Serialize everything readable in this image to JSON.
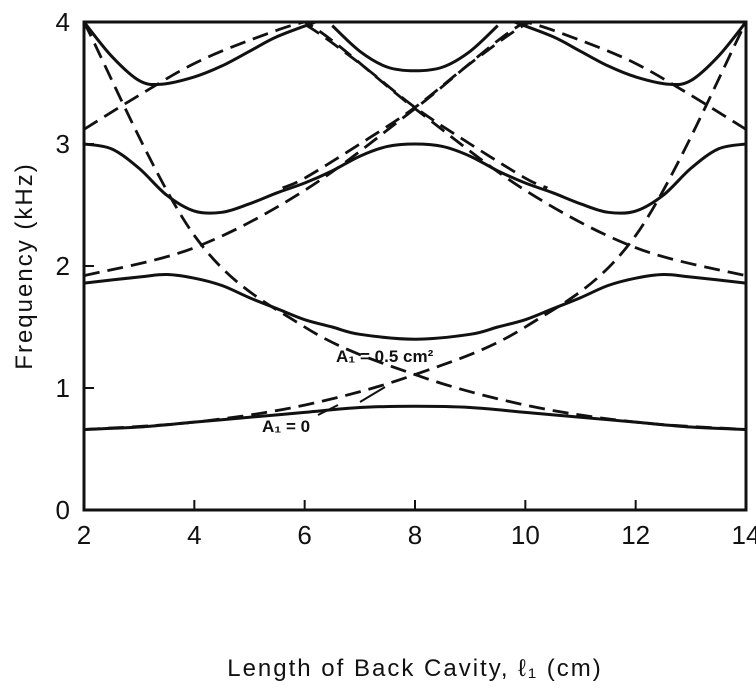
{
  "chart_data": {
    "type": "line",
    "xlabel": "Length of Back Cavity, ℓ₁ (cm)",
    "ylabel": "Frequency (kHz)",
    "xlim": [
      2,
      14
    ],
    "ylim": [
      0,
      4
    ],
    "xticks": [
      "2",
      "4",
      "6",
      "8",
      "10",
      "12",
      "14"
    ],
    "yticks": [
      "0",
      "1",
      "2",
      "3",
      "4"
    ],
    "grid": false,
    "annotations": [
      {
        "label": "A₁ = 0.5 cm²",
        "series_style": "solid"
      },
      {
        "label": "A₁ = 0",
        "series_style": "dashed"
      }
    ],
    "series": [
      {
        "style": "solid",
        "x": [
          2,
          3,
          4,
          5,
          6,
          7,
          8,
          9,
          10,
          11,
          12,
          13,
          14
        ],
        "y": [
          0.66,
          0.68,
          0.72,
          0.76,
          0.8,
          0.84,
          0.85,
          0.84,
          0.8,
          0.76,
          0.72,
          0.68,
          0.66
        ]
      },
      {
        "style": "solid",
        "x": [
          2,
          3,
          3.5,
          4,
          4.5,
          5,
          5.5,
          6,
          6.5,
          7,
          8,
          9,
          9.5,
          10,
          10.5,
          11,
          11.5,
          12,
          12.5,
          13,
          14
        ],
        "y": [
          1.86,
          1.91,
          1.93,
          1.9,
          1.84,
          1.74,
          1.65,
          1.56,
          1.5,
          1.44,
          1.4,
          1.44,
          1.5,
          1.56,
          1.65,
          1.74,
          1.84,
          1.9,
          1.93,
          1.91,
          1.86
        ]
      },
      {
        "style": "solid",
        "x": [
          2,
          2.5,
          3,
          3.5,
          4,
          4.5,
          5,
          5.5,
          6,
          6.5,
          7,
          7.5,
          8,
          8.5,
          9,
          9.5,
          10,
          10.5,
          11,
          11.5,
          12,
          12.5,
          13,
          13.5,
          14
        ],
        "y": [
          3.0,
          2.96,
          2.8,
          2.58,
          2.45,
          2.44,
          2.51,
          2.6,
          2.68,
          2.78,
          2.9,
          2.98,
          3.0,
          2.98,
          2.9,
          2.78,
          2.68,
          2.6,
          2.51,
          2.44,
          2.45,
          2.58,
          2.8,
          2.96,
          3.0
        ]
      },
      {
        "style": "solid",
        "x": [
          2,
          2.5,
          3,
          3.4,
          4,
          4.5,
          5,
          5.5,
          6.2
        ],
        "y": [
          4.0,
          3.72,
          3.52,
          3.49,
          3.55,
          3.64,
          3.76,
          3.88,
          4.0
        ]
      },
      {
        "style": "solid",
        "x": [
          6.5,
          7,
          7.5,
          8,
          8.5,
          9,
          9.5
        ],
        "y": [
          3.97,
          3.76,
          3.63,
          3.6,
          3.63,
          3.76,
          3.97
        ]
      },
      {
        "style": "solid",
        "x": [
          9.8,
          10.5,
          11,
          11.5,
          12,
          12.6,
          13,
          13.5,
          14
        ],
        "y": [
          4.0,
          3.88,
          3.76,
          3.64,
          3.55,
          3.49,
          3.52,
          3.72,
          4.0
        ]
      },
      {
        "style": "dashed",
        "x": [
          2,
          4,
          6,
          8,
          10,
          12,
          14
        ],
        "y": [
          0.66,
          0.72,
          0.86,
          1.11,
          1.5,
          2.25,
          4.0
        ]
      },
      {
        "style": "dashed",
        "x": [
          2,
          4,
          6,
          8,
          10,
          12,
          14
        ],
        "y": [
          4.0,
          2.25,
          1.5,
          1.11,
          0.86,
          0.72,
          0.66
        ]
      },
      {
        "style": "dashed",
        "x": [
          2,
          4,
          6,
          8,
          10,
          11,
          12,
          13,
          14
        ],
        "y": [
          1.92,
          2.15,
          2.62,
          3.29,
          4.0,
          4.0,
          4.0,
          4.0,
          4.0
        ]
      },
      {
        "style": "dashed",
        "x": [
          2,
          3,
          4,
          5,
          6,
          8,
          10,
          12,
          14
        ],
        "y": [
          4.0,
          4.0,
          4.0,
          4.0,
          4.0,
          3.29,
          2.62,
          2.15,
          1.92
        ]
      },
      {
        "style": "dashed",
        "x": [
          2,
          3,
          4,
          5,
          6,
          6.6
        ],
        "y": [
          3.12,
          3.4,
          3.66,
          3.85,
          4.0,
          4.0
        ]
      },
      {
        "style": "dashed",
        "x": [
          9.4,
          10,
          11,
          12,
          13,
          14
        ],
        "y": [
          4.0,
          4.0,
          3.85,
          3.66,
          3.4,
          3.12
        ]
      },
      {
        "style": "dashed",
        "x": [
          5.6,
          6,
          7,
          8,
          9,
          10,
          10.4
        ],
        "y": [
          4.0,
          3.98,
          3.66,
          3.3,
          3.0,
          2.72,
          2.64
        ]
      },
      {
        "style": "dashed",
        "x": [
          5.6,
          6,
          7,
          8,
          9,
          10,
          10.4
        ],
        "y": [
          2.64,
          2.72,
          3.0,
          3.3,
          3.66,
          3.98,
          4.0
        ]
      }
    ]
  }
}
